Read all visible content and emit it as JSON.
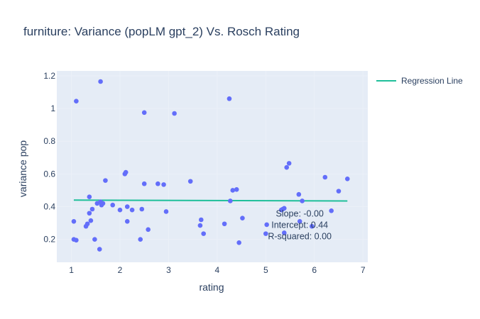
{
  "chart_data": {
    "type": "scatter",
    "title": "furniture: Variance (popLM gpt_2) Vs. Rosch Rating",
    "xlabel": "rating",
    "ylabel": "variance pop",
    "xlim": [
      0.7,
      7.1
    ],
    "ylim": [
      0.06,
      1.23
    ],
    "x_ticks": [
      1,
      2,
      3,
      4,
      5,
      6,
      7
    ],
    "y_ticks": [
      0.2,
      0.4,
      0.6,
      0.8,
      1,
      1.2
    ],
    "y_tick_labels": [
      "0.2",
      "0.4",
      "0.6",
      "0.8",
      "1",
      "1.2"
    ],
    "grid": true,
    "legend_position": "top-right",
    "colors": {
      "points": "#636efa",
      "regression": "#1fbf9a",
      "grid": "#ebf0f8",
      "text": "#2a3f5f"
    },
    "series": [
      {
        "kind": "points",
        "x": [
          1.05,
          1.05,
          1.1,
          1.1,
          1.3,
          1.33,
          1.37,
          1.37,
          1.4,
          1.43,
          1.48,
          1.53,
          1.58,
          1.6,
          1.62,
          1.6,
          1.65,
          1.7,
          1.85,
          2.0,
          2.1,
          2.12,
          2.15,
          2.15,
          2.25,
          2.42,
          2.45,
          2.5,
          2.5,
          2.58,
          2.78,
          2.9,
          2.95,
          3.12,
          3.45,
          3.65,
          3.67,
          3.72,
          4.15,
          4.25,
          4.27,
          4.32,
          4.4,
          4.45,
          4.52,
          5.0,
          5.02,
          5.32,
          5.35,
          5.38,
          5.38,
          5.43,
          5.48,
          5.68,
          5.7,
          5.75,
          5.95,
          6.22,
          6.35,
          6.5,
          6.68
        ],
        "y": [
          0.31,
          0.2,
          0.195,
          1.045,
          0.28,
          0.295,
          0.36,
          0.46,
          0.315,
          0.385,
          0.2,
          0.42,
          0.14,
          0.43,
          0.41,
          1.165,
          0.42,
          0.56,
          0.41,
          0.38,
          0.6,
          0.61,
          0.31,
          0.4,
          0.38,
          0.2,
          0.385,
          0.975,
          0.54,
          0.26,
          0.54,
          0.535,
          0.37,
          0.97,
          0.555,
          0.285,
          0.32,
          0.235,
          0.295,
          1.06,
          0.435,
          0.5,
          0.505,
          0.18,
          0.33,
          0.235,
          0.29,
          0.38,
          0.385,
          0.39,
          0.24,
          0.64,
          0.665,
          0.475,
          0.31,
          0.435,
          0.28,
          0.58,
          0.375,
          0.495,
          0.57
        ]
      },
      {
        "kind": "line",
        "name": "Regression Line",
        "x": [
          1.05,
          6.68
        ],
        "y": [
          0.44,
          0.435
        ]
      }
    ],
    "annotations": [
      "Slope: -0.00",
      "Intercept: 0.44",
      "R-squared: 0.00"
    ]
  }
}
